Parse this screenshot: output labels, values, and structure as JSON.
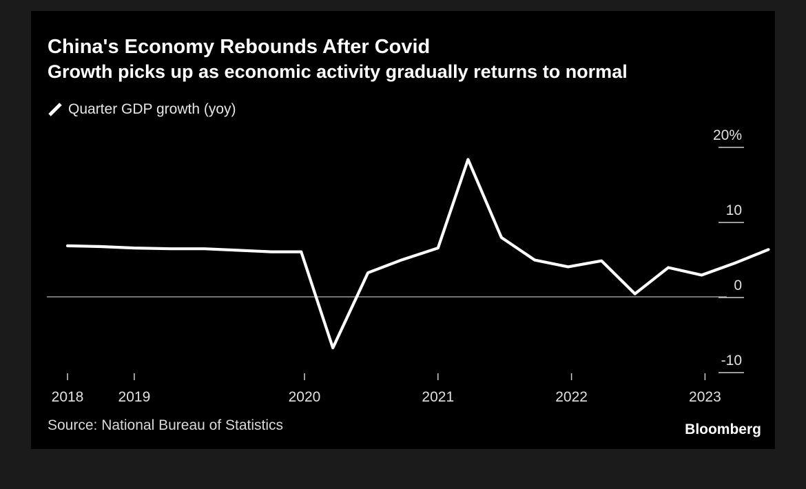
{
  "header": {
    "title": "China's Economy Rebounds After Covid",
    "subtitle": "Growth picks up as economic activity gradually returns to normal"
  },
  "footer": {
    "source": "Source: National Bureau of Statistics",
    "brand": "Bloomberg"
  },
  "colors": {
    "background": "#000000",
    "line": "#ffffff",
    "text": "#ffffff",
    "zero_line": "#9a9a9a"
  },
  "chart_data": {
    "type": "line",
    "title": "China's Economy Rebounds After Covid",
    "subtitle": "Growth picks up as economic activity gradually returns to normal",
    "xlabel": "",
    "ylabel": "",
    "ylim": [
      -10,
      20
    ],
    "y_ticks": [
      20,
      10,
      0,
      -10
    ],
    "y_tick_labels": [
      "20%",
      "10",
      "0",
      "-10"
    ],
    "x_tick_labels": [
      "2018",
      "2019",
      "2020",
      "2021",
      "2022",
      "2023"
    ],
    "legend_position": "top-left",
    "grid": false,
    "series": [
      {
        "name": "Quarter GDP growth (yoy)",
        "x": [
          "2018Q1",
          "2018Q2",
          "2018Q3",
          "2018Q4",
          "2019Q1",
          "2019Q2",
          "2019Q3",
          "2019Q4",
          "2020Q1",
          "2020Q2",
          "2020Q3",
          "2020Q4",
          "2021Q1",
          "2021Q2",
          "2021Q3",
          "2021Q4",
          "2022Q1",
          "2022Q2",
          "2022Q3",
          "2022Q4",
          "2023Q1",
          "2023Q2"
        ],
        "values": [
          6.8,
          6.7,
          6.5,
          6.4,
          6.4,
          6.2,
          6.0,
          6.0,
          -6.8,
          3.2,
          4.9,
          6.5,
          18.3,
          7.9,
          4.9,
          4.0,
          4.8,
          0.4,
          3.9,
          2.9,
          4.5,
          6.3
        ]
      }
    ]
  }
}
